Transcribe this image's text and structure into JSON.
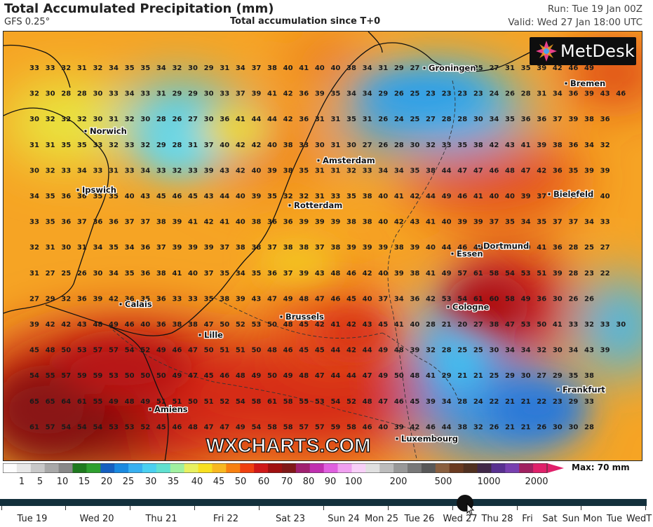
{
  "header": {
    "title": "Total Accumulated Precipitation (mm)",
    "model": "GFS 0.25°",
    "subtitle": "Total accumulation since T+0",
    "run": "Run: Tue 19 Jan 00Z",
    "valid": "Valid: Wed 27 Jan 18:00 UTC"
  },
  "logo": {
    "text": "MetDesk",
    "icon": "metdesk-star-icon"
  },
  "watermark": "WXCHARTS.COM",
  "cities": [
    {
      "name": "Groningen"
    },
    {
      "name": "Bremen"
    },
    {
      "name": "Norwich"
    },
    {
      "name": "Amsterdam"
    },
    {
      "name": "Ipswich"
    },
    {
      "name": "Bielefeld"
    },
    {
      "name": "Rotterdam"
    },
    {
      "name": "Dortmund"
    },
    {
      "name": "Essen"
    },
    {
      "name": "Calais"
    },
    {
      "name": "Cologne"
    },
    {
      "name": "Brussels"
    },
    {
      "name": "Lille"
    },
    {
      "name": "Frankfurt"
    },
    {
      "name": "Amiens"
    },
    {
      "name": "Luxembourg"
    }
  ],
  "grid_values": [
    [
      33,
      33,
      32,
      31,
      32,
      34,
      35,
      35,
      34,
      32,
      30,
      29,
      31,
      34,
      37,
      38,
      40,
      41,
      40,
      40,
      38,
      34,
      31,
      29,
      27,
      null,
      null,
      null,
      25,
      27,
      31,
      35,
      39,
      42,
      46,
      49
    ],
    [
      32,
      30,
      28,
      28,
      30,
      33,
      34,
      33,
      31,
      29,
      29,
      30,
      33,
      37,
      39,
      41,
      42,
      36,
      39,
      35,
      34,
      34,
      29,
      26,
      25,
      23,
      23,
      23,
      23,
      24,
      26,
      28,
      31,
      34,
      36,
      39,
      43,
      46
    ],
    [
      30,
      32,
      32,
      32,
      30,
      31,
      32,
      30,
      28,
      26,
      27,
      30,
      36,
      41,
      44,
      44,
      42,
      36,
      31,
      31,
      35,
      31,
      26,
      24,
      25,
      27,
      28,
      28,
      30,
      34,
      35,
      36,
      36,
      37,
      39,
      38,
      36
    ],
    [
      31,
      31,
      35,
      35,
      33,
      32,
      33,
      32,
      29,
      28,
      31,
      37,
      40,
      42,
      42,
      40,
      38,
      33,
      30,
      31,
      30,
      27,
      26,
      28,
      30,
      32,
      33,
      35,
      38,
      42,
      43,
      41,
      39,
      38,
      36,
      34,
      32
    ],
    [
      30,
      32,
      33,
      34,
      33,
      31,
      33,
      34,
      33,
      32,
      33,
      39,
      43,
      42,
      40,
      39,
      38,
      35,
      31,
      31,
      32,
      33,
      34,
      34,
      35,
      38,
      44,
      47,
      47,
      46,
      48,
      47,
      42,
      36,
      35,
      39,
      39
    ],
    [
      34,
      35,
      36,
      36,
      35,
      35,
      40,
      43,
      45,
      46,
      45,
      43,
      44,
      40,
      39,
      35,
      32,
      32,
      31,
      33,
      35,
      38,
      40,
      41,
      42,
      44,
      49,
      46,
      41,
      40,
      40,
      39,
      37,
      38,
      40,
      38,
      40
    ],
    [
      33,
      35,
      36,
      37,
      36,
      36,
      37,
      37,
      38,
      39,
      41,
      42,
      41,
      40,
      38,
      36,
      36,
      39,
      39,
      39,
      38,
      38,
      40,
      42,
      43,
      41,
      40,
      39,
      39,
      37,
      35,
      34,
      35,
      37,
      37,
      34,
      33
    ],
    [
      32,
      31,
      30,
      31,
      34,
      35,
      34,
      36,
      37,
      39,
      39,
      39,
      37,
      38,
      38,
      37,
      38,
      38,
      37,
      38,
      39,
      39,
      39,
      38,
      39,
      40,
      44,
      46,
      46,
      45,
      43,
      40,
      41,
      36,
      28,
      25,
      27
    ],
    [
      31,
      27,
      25,
      26,
      30,
      34,
      35,
      36,
      38,
      41,
      40,
      37,
      35,
      34,
      35,
      36,
      37,
      39,
      43,
      48,
      46,
      42,
      40,
      39,
      38,
      41,
      49,
      57,
      61,
      58,
      54,
      53,
      51,
      39,
      28,
      23,
      22
    ],
    [
      27,
      29,
      32,
      36,
      39,
      42,
      36,
      35,
      36,
      33,
      33,
      35,
      38,
      39,
      43,
      47,
      49,
      48,
      47,
      46,
      45,
      40,
      37,
      34,
      36,
      42,
      53,
      54,
      61,
      60,
      58,
      49,
      36,
      30,
      26,
      26
    ],
    [
      39,
      42,
      42,
      43,
      48,
      49,
      46,
      40,
      36,
      38,
      38,
      47,
      50,
      52,
      53,
      50,
      48,
      45,
      42,
      41,
      42,
      43,
      45,
      41,
      40,
      28,
      21,
      20,
      27,
      38,
      47,
      53,
      50,
      41,
      33,
      32,
      33,
      30
    ],
    [
      45,
      48,
      50,
      53,
      57,
      57,
      54,
      52,
      49,
      46,
      47,
      50,
      51,
      51,
      50,
      48,
      46,
      45,
      45,
      44,
      42,
      44,
      49,
      48,
      39,
      32,
      28,
      25,
      25,
      30,
      34,
      34,
      32,
      30,
      34,
      43,
      39
    ],
    [
      54,
      55,
      57,
      59,
      59,
      53,
      50,
      50,
      50,
      49,
      47,
      45,
      46,
      48,
      49,
      50,
      49,
      48,
      47,
      44,
      44,
      47,
      49,
      50,
      48,
      41,
      29,
      21,
      21,
      25,
      29,
      30,
      27,
      29,
      35,
      38
    ],
    [
      65,
      65,
      64,
      61,
      55,
      49,
      48,
      49,
      51,
      51,
      50,
      51,
      52,
      54,
      58,
      61,
      58,
      55,
      53,
      54,
      52,
      48,
      47,
      46,
      45,
      39,
      34,
      28,
      24,
      22,
      21,
      21,
      22,
      23,
      29,
      33
    ],
    [
      61,
      57,
      54,
      54,
      54,
      53,
      53,
      52,
      45,
      46,
      48,
      47,
      47,
      49,
      54,
      58,
      58,
      57,
      57,
      59,
      58,
      46,
      40,
      39,
      42,
      46,
      44,
      38,
      32,
      26,
      21,
      21,
      26,
      30,
      30,
      28
    ]
  ],
  "colorbar": {
    "max_label": "Max: 70 mm",
    "ticks": [
      "1",
      "5",
      "10",
      "15",
      "20",
      "25",
      "30",
      "35",
      "40",
      "45",
      "50",
      "60",
      "70",
      "80",
      "90",
      "100",
      "200",
      "500",
      "1000",
      "2000"
    ],
    "colors": [
      "#fdfdfd",
      "#e8e8e8",
      "#c8c8c8",
      "#a8a8a8",
      "#888888",
      "#1e7a1e",
      "#2ea02e",
      "#1560c0",
      "#1a8ae0",
      "#38b0f0",
      "#4ad0f0",
      "#60e0d0",
      "#a0f0a0",
      "#e8f060",
      "#f8e020",
      "#f8b820",
      "#f88010",
      "#f04010",
      "#d01818",
      "#a01010",
      "#801818",
      "#a02070",
      "#c030b0",
      "#e060e0",
      "#f0a0f0",
      "#f8d0f8",
      "#e0e0e0",
      "#bcbcbc",
      "#989898",
      "#787878",
      "#585858",
      "#8a6040",
      "#6a3a20",
      "#503020",
      "#402848",
      "#583090",
      "#7840b0",
      "#a02060",
      "#e0206a"
    ]
  },
  "timeline": {
    "days": [
      "Tue 19",
      "Wed 20",
      "Thu 21",
      "Fri 22",
      "Sat 23",
      "Sun 24",
      "Mon 25",
      "Tue 26",
      "Wed 27",
      "Thu 28",
      "Fri",
      "Sat",
      "Sun",
      "Mon",
      "Tue",
      "WedT"
    ],
    "current": 0.717
  }
}
